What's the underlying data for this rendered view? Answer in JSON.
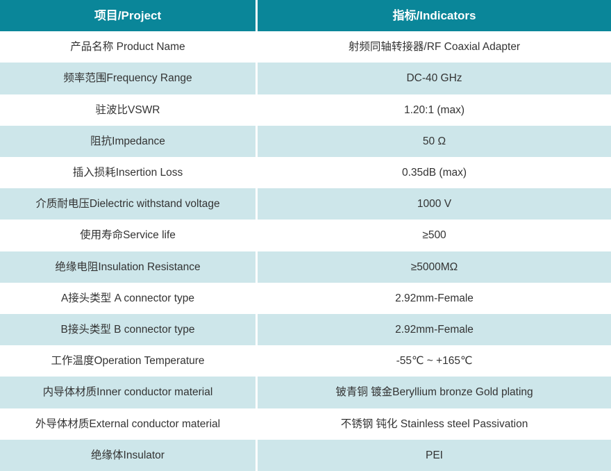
{
  "table": {
    "header": {
      "project": "项目/Project",
      "indicators": "指标/Indicators"
    },
    "rows": [
      {
        "project": "产品名称 Product Name",
        "indicator": "射频同轴转接器/RF Coaxial Adapter"
      },
      {
        "project": "频率范围Frequency Range",
        "indicator": "DC-40 GHz"
      },
      {
        "project": "驻波比VSWR",
        "indicator": "1.20:1 (max)"
      },
      {
        "project": "阻抗Impedance",
        "indicator": "50 Ω"
      },
      {
        "project": "插入损耗Insertion Loss",
        "indicator": "0.35dB (max)"
      },
      {
        "project": "介质耐电压Dielectric withstand voltage",
        "indicator": "1000 V"
      },
      {
        "project": "使用寿命Service life",
        "indicator": "≥500"
      },
      {
        "project": "绝缘电阻Insulation Resistance",
        "indicator": "≥5000MΩ"
      },
      {
        "project": "A接头类型 A connector type",
        "indicator": "2.92mm-Female"
      },
      {
        "project": "B接头类型 B connector type",
        "indicator": "2.92mm-Female"
      },
      {
        "project": "工作温度Operation Temperature",
        "indicator": "-55℃ ~ +165℃"
      },
      {
        "project": "内导体材质Inner conductor material",
        "indicator": "铍青铜 镀金Beryllium bronze Gold plating"
      },
      {
        "project": "外导体材质External conductor material",
        "indicator": "不锈钢 钝化 Stainless steel Passivation"
      },
      {
        "project": "绝缘体Insulator",
        "indicator": "PEI"
      }
    ],
    "colors": {
      "header_bg": "#0a8699",
      "alt_row_bg": "#cde6ea",
      "plain_row_bg": "#ffffff",
      "header_text": "#ffffff",
      "body_text": "#333333"
    }
  }
}
